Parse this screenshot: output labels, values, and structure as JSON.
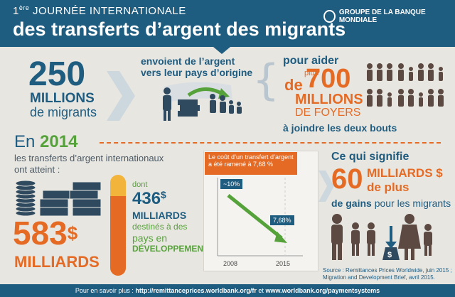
{
  "header": {
    "ordinal": "1",
    "ordinal_sup": "ère",
    "title_small": "JOURNÉE INTERNATIONALE",
    "title_big": "des transferts d’argent des migrants",
    "org": "GROUPE DE LA BANQUE MONDIALE"
  },
  "migrants": {
    "number": "250",
    "unit": "MILLIONS",
    "label": "de migrants"
  },
  "send": {
    "line1": "envoient de l’argent",
    "line2": "vers leur pays d’origine"
  },
  "help": {
    "line1": "pour aider",
    "prefix": "plus",
    "de": "de",
    "number": "700",
    "unit": "MILLIONS",
    "line_foyers": "DE FOYERS",
    "line_end": "à joindre les deux bouts"
  },
  "year": {
    "en": "En",
    "year": "2014",
    "desc1": "les transferts d’argent internationaux",
    "desc2": "ont atteint :"
  },
  "total": {
    "number": "583",
    "currency": "$",
    "unit": "MILLIARDS"
  },
  "dev": {
    "dont": "dont",
    "number": "436",
    "currency": "$",
    "unit": "MILLIARDS",
    "desc1": "destinés à des",
    "desc2": "pays en",
    "desc3": "DÉVELOPPEMENT"
  },
  "cost": {
    "banner1": "Le coût d’un transfert d’argent",
    "banner2": "a été ramené à 7,68 %",
    "start_label": "~10%",
    "end_label": "7,68%",
    "year_start": "2008",
    "year_end": "2015"
  },
  "gain": {
    "line1": "Ce qui signifie",
    "number": "60",
    "unit1": "MILLIARDS $",
    "unit2": "de plus",
    "line_end_a": "de gains",
    "line_end_b": "pour les migrants"
  },
  "source": {
    "line1": "Source : Remittances Prices Worldwide, juin 2015 ;",
    "line2": "Migration and Development Brief, avril 2015."
  },
  "footer": {
    "prefix": "Pour en savoir plus :",
    "link1": "http://remittanceprices.worldbank.org/fr",
    "sep": "et",
    "link2": "www.worldbank.org/paymentsystems"
  },
  "colors": {
    "blue": "#1e5c80",
    "orange": "#e56b25",
    "green": "#56a23a",
    "dark": "#2f4a5e"
  }
}
